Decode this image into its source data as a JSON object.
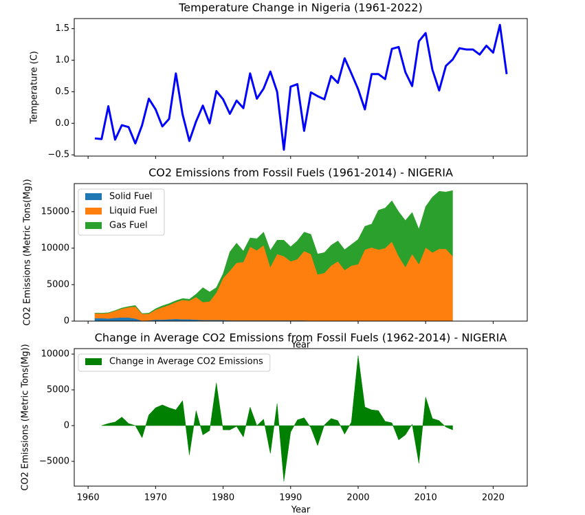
{
  "chart_data": [
    {
      "type": "line",
      "title": "Temperature Change in Nigeria (1961-2022)",
      "ylabel": "Temperature (C)",
      "x": [
        1961,
        1962,
        1963,
        1964,
        1965,
        1966,
        1967,
        1968,
        1969,
        1970,
        1971,
        1972,
        1973,
        1974,
        1975,
        1976,
        1977,
        1978,
        1979,
        1980,
        1981,
        1982,
        1983,
        1984,
        1985,
        1986,
        1987,
        1988,
        1989,
        1990,
        1991,
        1992,
        1993,
        1994,
        1995,
        1996,
        1997,
        1998,
        1999,
        2000,
        2001,
        2002,
        2003,
        2004,
        2005,
        2006,
        2007,
        2008,
        2009,
        2010,
        2011,
        2012,
        2013,
        2014,
        2015,
        2016,
        2017,
        2018,
        2019,
        2020,
        2021,
        2022
      ],
      "series": [
        {
          "color": "#0000ff",
          "values": [
            -0.24,
            -0.25,
            0.27,
            -0.26,
            -0.03,
            -0.06,
            -0.32,
            -0.03,
            0.39,
            0.22,
            -0.05,
            0.07,
            0.79,
            0.14,
            -0.28,
            0.03,
            0.28,
            0.0,
            0.51,
            0.38,
            0.15,
            0.36,
            0.24,
            0.79,
            0.39,
            0.55,
            0.82,
            0.5,
            -0.42,
            0.58,
            0.62,
            -0.12,
            0.49,
            0.43,
            0.38,
            0.75,
            0.64,
            1.03,
            0.79,
            0.54,
            0.22,
            0.78,
            0.78,
            0.7,
            1.18,
            1.21,
            0.81,
            0.59,
            1.3,
            1.43,
            0.85,
            0.52,
            0.91,
            1.01,
            1.19,
            1.17,
            1.17,
            1.09,
            1.23,
            1.12,
            1.56,
            0.78
          ]
        }
      ],
      "xlim": [
        1957.95,
        2025.05
      ],
      "ylim": [
        -0.52,
        1.66
      ],
      "xticks": [
        1960,
        1970,
        1980,
        1990,
        2000,
        2010,
        2020
      ],
      "yticks": [
        {
          "value": -0.5,
          "label": "−0.5"
        },
        {
          "value": 0,
          "label": "0.0"
        },
        0.5,
        {
          "value": 1,
          "label": "1.0"
        },
        1.5
      ]
    },
    {
      "type": "area",
      "stacked": true,
      "title": "CO2 Emissions from Fossil Fuels (1961-2014) - NIGERIA",
      "xlabel": "Year",
      "ylabel": "CO2 Emissions (Metric Tons(Mg))",
      "x": [
        1961,
        1962,
        1963,
        1964,
        1965,
        1966,
        1967,
        1968,
        1969,
        1970,
        1971,
        1972,
        1973,
        1974,
        1975,
        1976,
        1977,
        1978,
        1979,
        1980,
        1981,
        1982,
        1983,
        1984,
        1985,
        1986,
        1987,
        1988,
        1989,
        1990,
        1991,
        1992,
        1993,
        1994,
        1995,
        1996,
        1997,
        1998,
        1999,
        2000,
        2001,
        2002,
        2003,
        2004,
        2005,
        2006,
        2007,
        2008,
        2009,
        2010,
        2011,
        2012,
        2013,
        2014
      ],
      "series": [
        {
          "name": "Solid Fuel",
          "color": "#1f77b4",
          "values": [
            400,
            400,
            350,
            450,
            500,
            500,
            350,
            50,
            100,
            200,
            200,
            250,
            300,
            250,
            250,
            200,
            150,
            150,
            150,
            150,
            100,
            100,
            100,
            100,
            100,
            100,
            100,
            100,
            100,
            100,
            100,
            100,
            50,
            50,
            50,
            50,
            50,
            50,
            50,
            20,
            20,
            20,
            20,
            20,
            20,
            20,
            20,
            20,
            20,
            20,
            20,
            20,
            20,
            20
          ]
        },
        {
          "name": "Liquid Fuel",
          "color": "#ff7f0e",
          "values": [
            650,
            650,
            750,
            950,
            1200,
            1400,
            1650,
            950,
            900,
            1350,
            1700,
            1950,
            2300,
            2650,
            2550,
            3100,
            2450,
            2550,
            3750,
            5750,
            6800,
            7900,
            8000,
            10100,
            9600,
            10300,
            7300,
            9100,
            8800,
            8100,
            8400,
            9500,
            9150,
            6350,
            6550,
            7550,
            8150,
            6950,
            7550,
            7780,
            9780,
            10080,
            9780,
            9980,
            10880,
            8880,
            7380,
            9180,
            7780,
            10080,
            9380,
            9880,
            9880,
            8880
          ]
        },
        {
          "name": "Gas Fuel",
          "color": "#2ca02c",
          "values": [
            50,
            50,
            50,
            50,
            100,
            100,
            150,
            50,
            100,
            150,
            200,
            200,
            200,
            200,
            200,
            400,
            2000,
            1300,
            700,
            600,
            2600,
            2700,
            1500,
            1200,
            1600,
            1800,
            2300,
            1900,
            2200,
            2000,
            2500,
            2600,
            2700,
            2800,
            2800,
            2800,
            2800,
            2800,
            2900,
            3400,
            3200,
            3200,
            5400,
            5500,
            5600,
            6100,
            6400,
            5700,
            4800,
            5600,
            7600,
            7900,
            7800,
            9000
          ]
        }
      ],
      "xlim": [
        1957.95,
        2025.05
      ],
      "ylim": [
        0,
        18850
      ],
      "xticks": [
        1960,
        1970,
        1980,
        1990,
        2000,
        2010,
        2020
      ],
      "yticks": [
        0,
        5000,
        10000,
        15000
      ],
      "legend": "upper left"
    },
    {
      "type": "area",
      "title": "Change in Average CO2 Emissions from Fossil Fuels (1962-2014) - NIGERIA",
      "xlabel": "Year",
      "ylabel": "CO2 Emissions (Metric Tons(Mg))",
      "x": [
        1962,
        1963,
        1964,
        1965,
        1966,
        1967,
        1968,
        1969,
        1970,
        1971,
        1972,
        1973,
        1974,
        1975,
        1976,
        1977,
        1978,
        1979,
        1980,
        1981,
        1982,
        1983,
        1984,
        1985,
        1986,
        1987,
        1988,
        1989,
        1990,
        1991,
        1992,
        1993,
        1994,
        1995,
        1996,
        1997,
        1998,
        1999,
        2000,
        2001,
        2002,
        2003,
        2004,
        2005,
        2006,
        2007,
        2008,
        2009,
        2010,
        2011,
        2012,
        2013,
        2014
      ],
      "series": [
        {
          "name": "Change in Average CO2 Emissions",
          "color": "#008000",
          "values": [
            0,
            300,
            500,
            1200,
            300,
            0,
            -1700,
            1500,
            2500,
            2900,
            2500,
            2200,
            3500,
            -4100,
            2100,
            -1300,
            -700,
            6000,
            -600,
            -600,
            -100,
            -1600,
            2600,
            0,
            900,
            -3900,
            3100,
            -7800,
            -900,
            800,
            1100,
            -300,
            -2800,
            100,
            1000,
            700,
            -1200,
            500,
            9800,
            2600,
            2200,
            2100,
            600,
            400,
            -2000,
            -1300,
            200,
            -5300,
            4000,
            1000,
            700,
            -200,
            -600
          ]
        }
      ],
      "xlim": [
        1957.95,
        2025.05
      ],
      "ylim": [
        -8460,
        10770
      ],
      "xticks": [
        1960,
        1970,
        1980,
        1990,
        2000,
        2010,
        2020
      ],
      "yticks": [
        {
          "value": -5000,
          "label": "−5000"
        },
        0,
        5000,
        10000
      ],
      "legend": "upper left"
    }
  ]
}
